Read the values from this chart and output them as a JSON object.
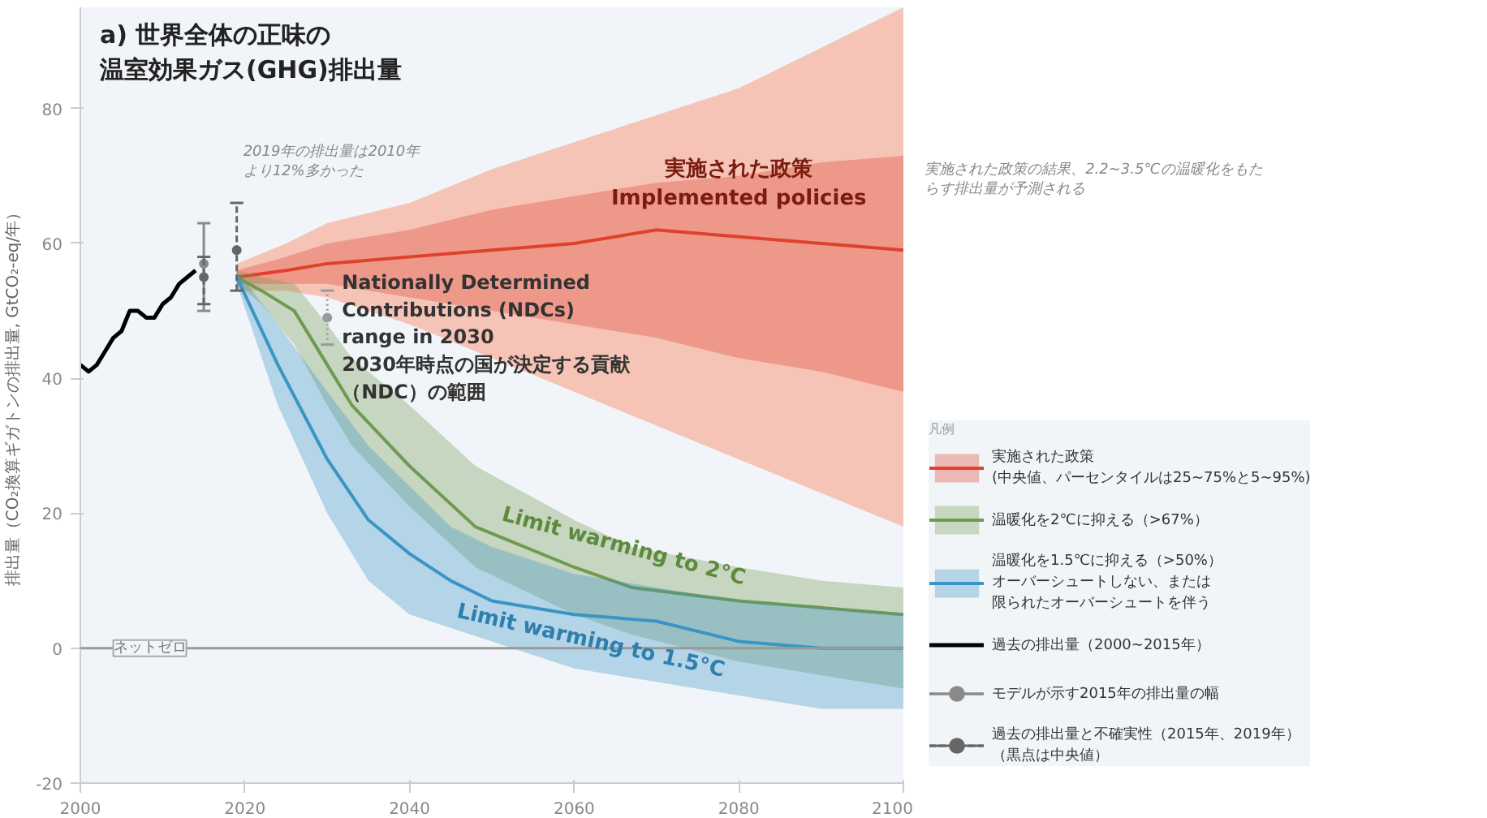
{
  "chart_data": {
    "type": "line",
    "title": "a) 世界全体の正味の温室効果ガス(GHG)排出量",
    "ylabel": "排出量（CO₂換算ギガトンの排出量, GtCO₂-eq/年）",
    "xlim": [
      2000,
      2100
    ],
    "xticks": [
      2000,
      2020,
      2040,
      2060,
      2080,
      2100
    ],
    "ylim": [
      -20,
      95
    ],
    "yticks": [
      -20,
      0,
      20,
      40,
      60,
      80
    ],
    "grid": false,
    "legend": "bottom right",
    "legend_title": "凡例",
    "ref_lines": [
      {
        "axis": "y",
        "value": 0,
        "label": "ネットゼロ",
        "color": "#9a9a9a"
      }
    ],
    "annotations": [
      {
        "text": "2019年の排出量は2010年より12%多かった",
        "x": 2019,
        "y": 66
      },
      {
        "text": "実施された政策\nImplemented policies",
        "x": 2080,
        "y": 61
      },
      {
        "text": "Nationally Determined\nContributions (NDCs)\nrange in 2030\n2030年時点の国が決定する貢献（NDC）の範囲",
        "x": 2030,
        "y": 53
      },
      {
        "text": "Limit warming to 2°C",
        "x": 2066,
        "y": 15
      },
      {
        "text": "Limit warming to 1.5°C",
        "x": 2062,
        "y": 1
      },
      "実施された政策の結果、2.2~3.5℃の温暖化をもたらす排出量が予測される"
    ],
    "series": [
      {
        "color": "#f5bfae",
        "x": [
          2019,
          2025,
          2030,
          2040,
          2050,
          2060,
          2070,
          2080,
          2090,
          2100
        ],
        "values": [
          null,
          null,
          null,
          null,
          null,
          null,
          null,
          null,
          null,
          null
        ],
        "lower": [
          53,
          53,
          52,
          48,
          43,
          38,
          33,
          28,
          23,
          18
        ],
        "upper": [
          57,
          60,
          63,
          66,
          71,
          75,
          79,
          83,
          89,
          95
        ]
      },
      {
        "name": "実施された政策\n(中央値、パーセンタイルは25~75%と5~95%)",
        "color": "#e0402e",
        "x": [
          2019,
          2025,
          2030,
          2040,
          2050,
          2060,
          2070,
          2080,
          2090,
          2100
        ],
        "values": [
          55,
          56,
          57,
          58,
          59,
          60,
          62,
          61,
          60,
          59
        ],
        "lower": [
          54,
          54,
          54,
          52,
          50,
          48,
          46,
          43,
          41,
          38
        ],
        "upper": [
          56,
          58,
          60,
          62,
          65,
          67,
          69,
          70,
          72,
          73
        ]
      },
      {
        "name": "温暖化を2℃に抑える（>67%）",
        "color": "#6f9a4f",
        "x": [
          2019,
          2022,
          2026,
          2030,
          2033,
          2040,
          2048,
          2060,
          2067,
          2080,
          2090,
          2100
        ],
        "values": [
          55,
          53,
          50,
          42,
          36,
          27,
          18,
          12,
          9,
          7,
          6,
          5
        ],
        "lower": [
          54,
          51,
          45,
          36,
          30,
          21,
          12,
          5,
          2,
          -2,
          -4,
          -6
        ],
        "upper": [
          56,
          55,
          54,
          48,
          43,
          36,
          27,
          19,
          15,
          12,
          10,
          9
        ]
      },
      {
        "name": "温暖化を1.5℃に抑える（>50%）オーバーシュートしない、または限られたオーバーシュートを伴う",
        "color": "#3b95c4",
        "x": [
          2019,
          2024,
          2030,
          2035,
          2040,
          2045,
          2050,
          2060,
          2070,
          2080,
          2090,
          2100
        ],
        "values": [
          55,
          42,
          28,
          19,
          14,
          10,
          7,
          5,
          4,
          1,
          0,
          0
        ],
        "lower": [
          54,
          36,
          20,
          10,
          5,
          3,
          1,
          -3,
          -5,
          -7,
          -9,
          -9
        ],
        "upper": [
          56,
          48,
          38,
          30,
          24,
          18,
          15,
          11,
          9,
          7,
          6,
          5
        ]
      },
      {
        "name": "過去の排出量（2000~2015年）",
        "color": "#000000",
        "x": [
          2000,
          2001,
          2002,
          2003,
          2004,
          2005,
          2006,
          2007,
          2008,
          2009,
          2010,
          2011,
          2012,
          2013,
          2014
        ],
        "values": [
          42,
          41,
          42,
          44,
          46,
          47,
          50,
          50,
          49,
          49,
          51,
          52,
          54,
          55,
          56
        ]
      },
      {
        "type": "scatter",
        "name": "モデルが示す2015年の排出量の幅",
        "color": "#8a8a8a",
        "marker": "circle",
        "x": [
          2015
        ],
        "values": [
          57
        ],
        "errors": [
          [
            50,
            63
          ]
        ]
      },
      {
        "type": "scatter",
        "name": "過去の排出量と不確実性（2015年、2019年）（黒点は中央値）",
        "color": "#666666",
        "marker": "circle",
        "line_style": "dashed",
        "x": [
          2015,
          2019
        ],
        "values": [
          55,
          59
        ],
        "errors": [
          [
            51,
            58
          ],
          [
            53,
            66
          ]
        ]
      },
      {
        "type": "scatter",
        "color": "#9a9a9a",
        "line_style": "dotted",
        "marker": "circle",
        "x": [
          2030
        ],
        "values": [
          49
        ],
        "errors": [
          [
            45,
            53
          ]
        ]
      }
    ]
  }
}
